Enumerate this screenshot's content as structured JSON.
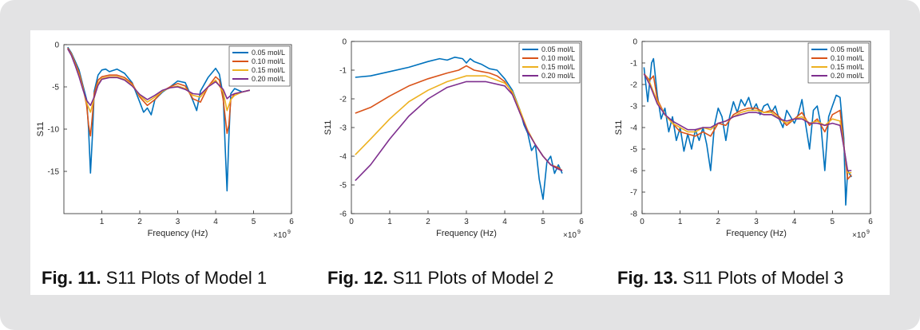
{
  "captions": [
    {
      "label": "Fig. 11.",
      "text": " S11 Plots of Model 1"
    },
    {
      "label": "Fig. 12.",
      "text": " S11 Plots of Model 2"
    },
    {
      "label": "Fig. 13.",
      "text": " S11 Plots of Model 3"
    }
  ],
  "series_colors": [
    "#0072bd",
    "#d95319",
    "#edb120",
    "#7e2f8e"
  ],
  "chart_data": [
    {
      "type": "line",
      "xlabel": "Frequency (Hz)",
      "ylabel": "S11",
      "x_exponent_label": "×10",
      "x_exponent": "9",
      "xlim": [
        0,
        6
      ],
      "ylim": [
        -20,
        0
      ],
      "xticks": [
        1,
        2,
        3,
        4,
        5,
        6
      ],
      "yticks": [
        0,
        -5,
        -10,
        -15
      ],
      "legend_position": "top-right",
      "series": [
        {
          "name": "0.05 mol/L",
          "x": [
            0.1,
            0.2,
            0.3,
            0.4,
            0.5,
            0.6,
            0.65,
            0.7,
            0.75,
            0.8,
            0.9,
            1.0,
            1.1,
            1.2,
            1.4,
            1.6,
            1.8,
            2.0,
            2.1,
            2.2,
            2.3,
            2.4,
            2.6,
            2.8,
            3.0,
            3.2,
            3.4,
            3.5,
            3.6,
            3.8,
            4.0,
            4.1,
            4.2,
            4.25,
            4.3,
            4.35,
            4.4,
            4.5,
            4.7,
            4.9
          ],
          "y": [
            -0.3,
            -1.0,
            -2.0,
            -3.0,
            -4.8,
            -6.5,
            -10.0,
            -15.2,
            -11.0,
            -5.5,
            -3.6,
            -3.0,
            -2.9,
            -3.2,
            -2.9,
            -3.4,
            -4.5,
            -6.8,
            -8.0,
            -7.5,
            -8.3,
            -6.5,
            -5.6,
            -5.0,
            -4.3,
            -4.5,
            -6.6,
            -7.8,
            -5.5,
            -3.9,
            -2.8,
            -3.5,
            -6.0,
            -12.0,
            -17.3,
            -11.0,
            -5.8,
            -5.2,
            -5.6,
            -5.4
          ]
        },
        {
          "name": "0.10 mol/L",
          "x": [
            0.1,
            0.2,
            0.3,
            0.4,
            0.5,
            0.6,
            0.65,
            0.7,
            0.75,
            0.8,
            0.9,
            1.0,
            1.2,
            1.4,
            1.6,
            1.8,
            2.0,
            2.2,
            2.4,
            2.6,
            2.8,
            3.0,
            3.2,
            3.4,
            3.6,
            3.8,
            4.0,
            4.1,
            4.2,
            4.3,
            4.35,
            4.4,
            4.5,
            4.7,
            4.9
          ],
          "y": [
            -0.4,
            -1.1,
            -2.2,
            -3.3,
            -5.0,
            -7.2,
            -9.5,
            -10.8,
            -8.5,
            -5.8,
            -4.2,
            -3.8,
            -3.6,
            -3.6,
            -3.9,
            -4.6,
            -6.2,
            -7.2,
            -6.5,
            -5.5,
            -5.0,
            -4.6,
            -4.9,
            -6.4,
            -6.8,
            -5.0,
            -3.8,
            -4.2,
            -6.5,
            -10.5,
            -9.5,
            -6.5,
            -5.8,
            -5.6,
            -5.4
          ]
        },
        {
          "name": "0.15 mol/L",
          "x": [
            0.1,
            0.2,
            0.3,
            0.4,
            0.5,
            0.6,
            0.7,
            0.8,
            0.9,
            1.0,
            1.2,
            1.4,
            1.6,
            1.8,
            2.0,
            2.2,
            2.4,
            2.6,
            2.8,
            3.0,
            3.2,
            3.4,
            3.6,
            3.8,
            4.0,
            4.2,
            4.3,
            4.4,
            4.5,
            4.7,
            4.9
          ],
          "y": [
            -0.5,
            -1.2,
            -2.4,
            -3.6,
            -5.2,
            -6.9,
            -8.0,
            -6.3,
            -4.6,
            -4.0,
            -3.8,
            -3.8,
            -4.1,
            -4.8,
            -6.0,
            -6.8,
            -6.2,
            -5.5,
            -5.1,
            -4.9,
            -5.2,
            -6.0,
            -6.2,
            -5.0,
            -4.2,
            -5.6,
            -7.8,
            -6.5,
            -6.0,
            -5.6,
            -5.4
          ]
        },
        {
          "name": "0.20 mol/L",
          "x": [
            0.1,
            0.2,
            0.3,
            0.4,
            0.5,
            0.6,
            0.7,
            0.8,
            0.9,
            1.0,
            1.2,
            1.4,
            1.6,
            1.8,
            2.0,
            2.2,
            2.4,
            2.6,
            2.8,
            3.0,
            3.2,
            3.4,
            3.6,
            3.8,
            4.0,
            4.2,
            4.3,
            4.4,
            4.5,
            4.7,
            4.9
          ],
          "y": [
            -0.5,
            -1.3,
            -2.5,
            -3.8,
            -5.3,
            -6.6,
            -7.2,
            -6.2,
            -4.8,
            -4.1,
            -3.9,
            -3.9,
            -4.2,
            -4.9,
            -5.9,
            -6.5,
            -6.0,
            -5.4,
            -5.1,
            -5.0,
            -5.3,
            -5.8,
            -5.9,
            -5.0,
            -4.4,
            -5.3,
            -6.4,
            -6.0,
            -5.8,
            -5.6,
            -5.4
          ]
        }
      ]
    },
    {
      "type": "line",
      "xlabel": "Frequency (Hz)",
      "ylabel": "S11",
      "x_exponent_label": "×10",
      "x_exponent": "9",
      "xlim": [
        0,
        6
      ],
      "ylim": [
        -6,
        0
      ],
      "xticks": [
        0,
        1,
        2,
        3,
        4,
        5,
        6
      ],
      "yticks": [
        0,
        -1,
        -2,
        -3,
        -4,
        -5,
        -6
      ],
      "legend_position": "top-right",
      "series": [
        {
          "name": "0.05 mol/L",
          "x": [
            0.1,
            0.5,
            1.0,
            1.5,
            2.0,
            2.3,
            2.5,
            2.7,
            2.9,
            3.0,
            3.1,
            3.2,
            3.4,
            3.6,
            3.8,
            4.0,
            4.2,
            4.4,
            4.5,
            4.6,
            4.7,
            4.8,
            4.9,
            5.0,
            5.1,
            5.2,
            5.3,
            5.4,
            5.5
          ],
          "y": [
            -1.25,
            -1.2,
            -1.05,
            -0.9,
            -0.7,
            -0.6,
            -0.65,
            -0.55,
            -0.6,
            -0.75,
            -0.6,
            -0.7,
            -0.8,
            -0.95,
            -1.0,
            -1.3,
            -1.7,
            -2.4,
            -2.9,
            -3.2,
            -3.8,
            -3.6,
            -4.8,
            -5.5,
            -4.2,
            -4.0,
            -4.6,
            -4.3,
            -4.6
          ]
        },
        {
          "name": "0.10 mol/L",
          "x": [
            0.1,
            0.5,
            1.0,
            1.5,
            2.0,
            2.5,
            2.8,
            3.0,
            3.2,
            3.4,
            3.6,
            3.8,
            4.0,
            4.2,
            4.4,
            4.6,
            4.8,
            5.0,
            5.2,
            5.4,
            5.5
          ],
          "y": [
            -2.5,
            -2.3,
            -1.9,
            -1.55,
            -1.3,
            -1.1,
            -1.0,
            -0.85,
            -1.0,
            -1.05,
            -1.1,
            -1.2,
            -1.4,
            -1.8,
            -2.5,
            -3.1,
            -3.6,
            -4.0,
            -4.3,
            -4.4,
            -4.5
          ]
        },
        {
          "name": "0.15 mol/L",
          "x": [
            0.1,
            0.5,
            1.0,
            1.5,
            2.0,
            2.5,
            3.0,
            3.5,
            4.0,
            4.2,
            4.4,
            4.6,
            4.8,
            5.0,
            5.2,
            5.4,
            5.5
          ],
          "y": [
            -3.95,
            -3.4,
            -2.7,
            -2.1,
            -1.7,
            -1.4,
            -1.2,
            -1.2,
            -1.45,
            -1.75,
            -2.4,
            -3.1,
            -3.6,
            -4.0,
            -4.3,
            -4.45,
            -4.5
          ]
        },
        {
          "name": "0.20 mol/L",
          "x": [
            0.1,
            0.5,
            1.0,
            1.5,
            2.0,
            2.5,
            3.0,
            3.5,
            4.0,
            4.2,
            4.4,
            4.6,
            4.8,
            5.0,
            5.2,
            5.4,
            5.5
          ],
          "y": [
            -4.85,
            -4.3,
            -3.4,
            -2.6,
            -2.0,
            -1.6,
            -1.4,
            -1.4,
            -1.55,
            -1.85,
            -2.5,
            -3.15,
            -3.6,
            -4.0,
            -4.3,
            -4.45,
            -4.5
          ]
        }
      ]
    },
    {
      "type": "line",
      "xlabel": "Frequency (Hz)",
      "ylabel": "S11",
      "x_exponent_label": "×10",
      "x_exponent": "9",
      "xlim": [
        0,
        6
      ],
      "ylim": [
        -8,
        0
      ],
      "xticks": [
        0,
        1,
        2,
        3,
        4,
        5,
        6
      ],
      "yticks": [
        0,
        -1,
        -2,
        -3,
        -4,
        -5,
        -6,
        -7,
        -8
      ],
      "legend_position": "top-right",
      "series": [
        {
          "name": "0.05 mol/L",
          "x": [
            0.05,
            0.15,
            0.25,
            0.3,
            0.4,
            0.5,
            0.6,
            0.7,
            0.8,
            0.9,
            1.0,
            1.1,
            1.2,
            1.3,
            1.4,
            1.5,
            1.6,
            1.7,
            1.8,
            1.9,
            2.0,
            2.1,
            2.2,
            2.3,
            2.4,
            2.5,
            2.6,
            2.7,
            2.8,
            2.9,
            3.0,
            3.1,
            3.2,
            3.3,
            3.4,
            3.5,
            3.6,
            3.7,
            3.8,
            3.9,
            4.0,
            4.1,
            4.2,
            4.3,
            4.4,
            4.5,
            4.6,
            4.7,
            4.8,
            4.9,
            5.0,
            5.1,
            5.2,
            5.3,
            5.35,
            5.4,
            5.5
          ],
          "y": [
            -1.2,
            -2.8,
            -1.0,
            -0.8,
            -2.5,
            -3.6,
            -3.1,
            -4.2,
            -3.5,
            -4.6,
            -4.0,
            -5.1,
            -4.3,
            -5.0,
            -4.1,
            -4.6,
            -4.0,
            -4.8,
            -6.0,
            -3.9,
            -3.1,
            -3.5,
            -4.6,
            -3.5,
            -2.8,
            -3.3,
            -2.7,
            -3.0,
            -2.6,
            -3.2,
            -2.9,
            -3.4,
            -3.0,
            -2.9,
            -3.3,
            -3.0,
            -3.6,
            -4.0,
            -3.2,
            -3.5,
            -3.8,
            -3.4,
            -2.7,
            -3.9,
            -5.0,
            -3.2,
            -3.0,
            -3.9,
            -6.0,
            -3.5,
            -3.0,
            -2.5,
            -2.6,
            -4.5,
            -7.6,
            -6.0,
            -6.3
          ]
        },
        {
          "name": "0.10 mol/L",
          "x": [
            0.05,
            0.2,
            0.3,
            0.4,
            0.6,
            0.8,
            1.0,
            1.2,
            1.4,
            1.6,
            1.8,
            2.0,
            2.2,
            2.4,
            2.6,
            2.8,
            3.0,
            3.2,
            3.4,
            3.6,
            3.8,
            4.0,
            4.2,
            4.4,
            4.6,
            4.8,
            5.0,
            5.2,
            5.3,
            5.4,
            5.5
          ],
          "y": [
            -1.5,
            -1.8,
            -1.6,
            -2.7,
            -3.4,
            -3.8,
            -4.2,
            -4.3,
            -4.4,
            -4.2,
            -4.4,
            -3.8,
            -3.9,
            -3.4,
            -3.2,
            -3.1,
            -3.1,
            -3.3,
            -3.2,
            -3.5,
            -3.9,
            -3.6,
            -3.3,
            -3.9,
            -3.6,
            -4.2,
            -3.4,
            -3.2,
            -4.8,
            -6.4,
            -6.2
          ]
        },
        {
          "name": "0.15 mol/L",
          "x": [
            0.05,
            0.2,
            0.4,
            0.6,
            0.8,
            1.0,
            1.2,
            1.4,
            1.6,
            1.8,
            2.0,
            2.2,
            2.4,
            2.6,
            2.8,
            3.0,
            3.2,
            3.4,
            3.6,
            3.8,
            4.0,
            4.2,
            4.4,
            4.6,
            4.8,
            5.0,
            5.2,
            5.3,
            5.4,
            5.5
          ],
          "y": [
            -1.5,
            -1.9,
            -2.8,
            -3.4,
            -3.8,
            -4.0,
            -4.2,
            -4.2,
            -4.0,
            -4.1,
            -3.8,
            -3.7,
            -3.5,
            -3.3,
            -3.2,
            -3.2,
            -3.3,
            -3.3,
            -3.6,
            -3.8,
            -3.6,
            -3.5,
            -3.8,
            -3.7,
            -3.9,
            -3.6,
            -3.7,
            -4.9,
            -6.1,
            -6.1
          ]
        },
        {
          "name": "0.20 mol/L",
          "x": [
            0.05,
            0.2,
            0.4,
            0.6,
            0.8,
            1.0,
            1.2,
            1.4,
            1.6,
            1.8,
            2.0,
            2.2,
            2.4,
            2.6,
            2.8,
            3.0,
            3.2,
            3.4,
            3.6,
            3.8,
            4.0,
            4.2,
            4.4,
            4.6,
            4.8,
            5.0,
            5.2,
            5.3,
            5.4,
            5.5
          ],
          "y": [
            -1.5,
            -2.0,
            -2.9,
            -3.4,
            -3.7,
            -3.9,
            -4.1,
            -4.1,
            -4.0,
            -4.0,
            -3.8,
            -3.7,
            -3.5,
            -3.4,
            -3.3,
            -3.3,
            -3.4,
            -3.4,
            -3.6,
            -3.7,
            -3.6,
            -3.6,
            -3.8,
            -3.8,
            -3.9,
            -3.8,
            -3.9,
            -4.9,
            -6.0,
            -6.0
          ]
        }
      ]
    }
  ]
}
